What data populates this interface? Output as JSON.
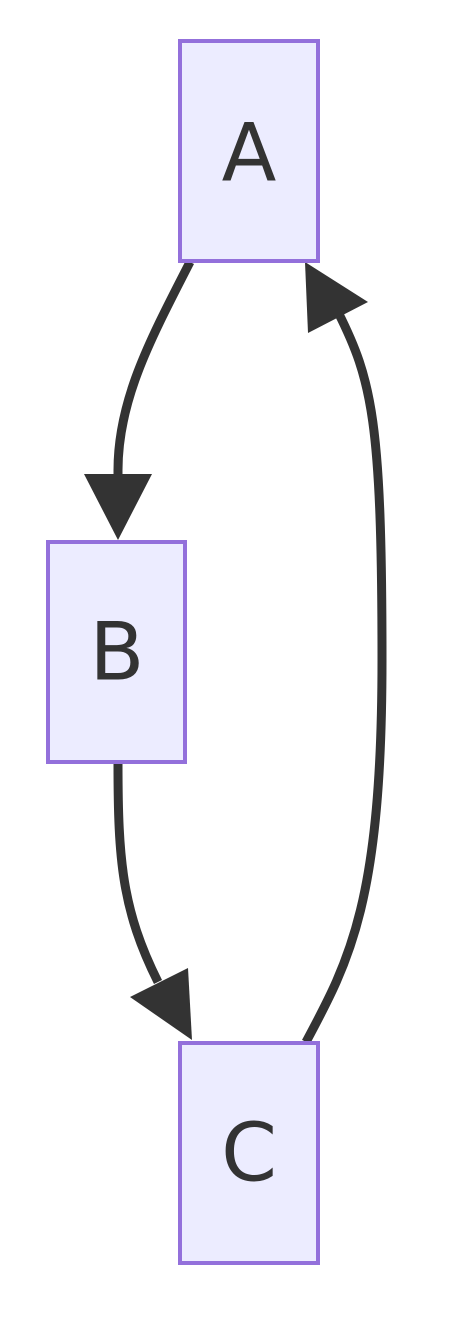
{
  "diagram": {
    "type": "flowchart",
    "nodes": [
      {
        "id": "A",
        "label": "A"
      },
      {
        "id": "B",
        "label": "B"
      },
      {
        "id": "C",
        "label": "C"
      }
    ],
    "edges": [
      {
        "from": "A",
        "to": "B"
      },
      {
        "from": "B",
        "to": "C"
      },
      {
        "from": "C",
        "to": "A"
      }
    ],
    "colors": {
      "node_fill": "#ECECFF",
      "node_stroke": "#9370DB",
      "edge": "#333333",
      "label": "#333333",
      "background": "#FFFFFF"
    }
  }
}
